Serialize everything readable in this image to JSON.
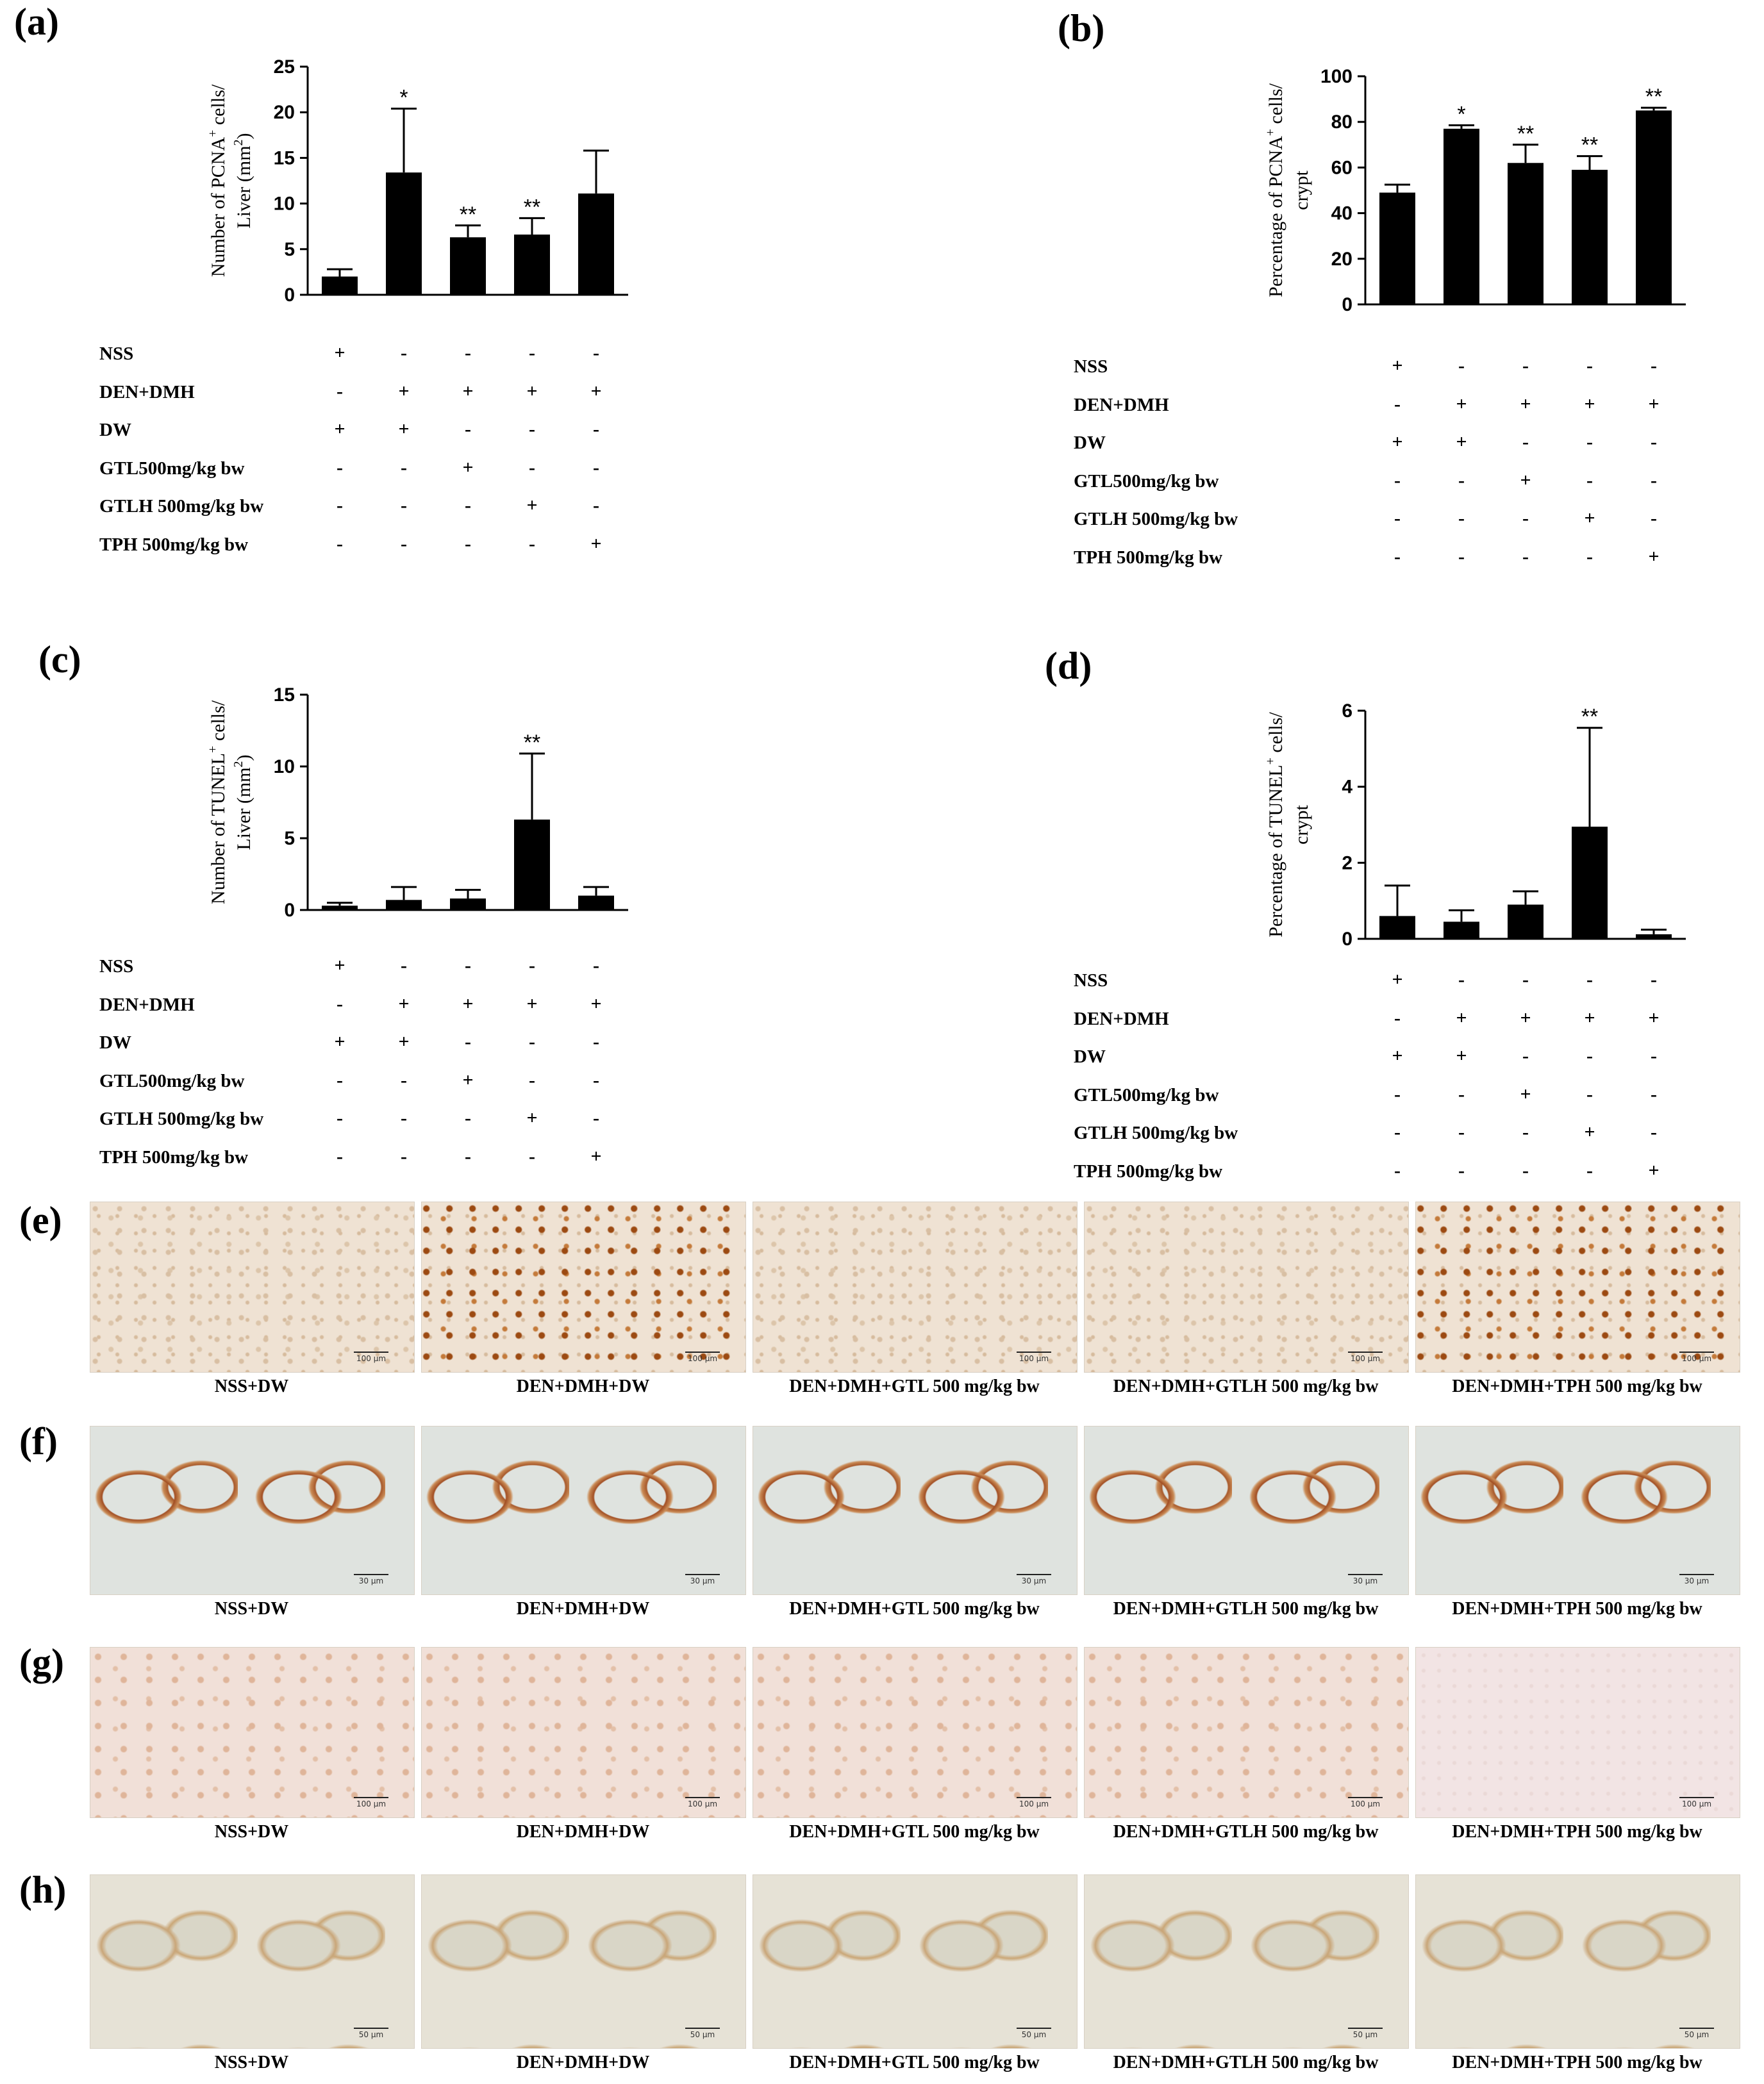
{
  "panel_labels": {
    "a": "(a)",
    "b": "(b)",
    "c": "(c)",
    "d": "(d)",
    "e": "(e)",
    "f": "(f)",
    "g": "(g)",
    "h": "(h)"
  },
  "treatment_rows": [
    "NSS",
    "DEN+DMH",
    "DW",
    "GTL500mg/kg bw",
    "GTLH 500mg/kg bw",
    "TPH 500mg/kg bw"
  ],
  "treatment_matrix": [
    [
      "+",
      "-",
      "-",
      "-",
      "-"
    ],
    [
      "-",
      "+",
      "+",
      "+",
      "+"
    ],
    [
      "+",
      "+",
      "-",
      "-",
      "-"
    ],
    [
      "-",
      "-",
      "+",
      "-",
      "-"
    ],
    [
      "-",
      "-",
      "-",
      "+",
      "-"
    ],
    [
      "-",
      "-",
      "-",
      "-",
      "+"
    ]
  ],
  "chart_data": [
    {
      "type": "bar",
      "panel": "(a)",
      "ylabel_line1": "Number of PCNA",
      "ylabel_sup": "+",
      "ylabel_line1_end": " cells/",
      "ylabel_line2": "Liver (mm",
      "ylabel_line2_sup": "2",
      "ylabel_line2_end": ")",
      "ylim": [
        0,
        25
      ],
      "yticks": [
        0,
        5,
        10,
        15,
        20,
        25
      ],
      "values": [
        2.0,
        13.4,
        6.3,
        6.6,
        11.1
      ],
      "errors": [
        0.8,
        7.0,
        1.3,
        1.8,
        4.7
      ],
      "significance": [
        "",
        "*",
        "**",
        "**",
        ""
      ]
    },
    {
      "type": "bar",
      "panel": "(b)",
      "ylabel_line1": "Percentage of PCNA",
      "ylabel_sup": "+",
      "ylabel_line1_end": " cells/",
      "ylabel_line2": "crypt",
      "ylabel_line2_sup": "",
      "ylabel_line2_end": "",
      "ylim": [
        0,
        100
      ],
      "yticks": [
        0,
        20,
        40,
        60,
        80,
        100
      ],
      "values": [
        49,
        77,
        62,
        59,
        85
      ],
      "errors": [
        3.5,
        1.5,
        8,
        6,
        1.2
      ],
      "significance": [
        "",
        "*",
        "**",
        "**",
        "**"
      ]
    },
    {
      "type": "bar",
      "panel": "(c)",
      "ylabel_line1": "Number of TUNEL",
      "ylabel_sup": "+",
      "ylabel_line1_end": " cells/",
      "ylabel_line2": "Liver (mm",
      "ylabel_line2_sup": "2",
      "ylabel_line2_end": ")",
      "ylim": [
        0,
        15
      ],
      "yticks": [
        0,
        5,
        10,
        15
      ],
      "values": [
        0.3,
        0.7,
        0.8,
        6.3,
        1.0
      ],
      "errors": [
        0.2,
        0.9,
        0.6,
        4.6,
        0.6
      ],
      "significance": [
        "",
        "",
        "",
        "**",
        ""
      ]
    },
    {
      "type": "bar",
      "panel": "(d)",
      "ylabel_line1": "Percentage of TUNEL",
      "ylabel_sup": "+",
      "ylabel_line1_end": " cells/",
      "ylabel_line2": "crypt",
      "ylabel_line2_sup": "",
      "ylabel_line2_end": "",
      "ylim": [
        0,
        6
      ],
      "yticks": [
        0,
        2,
        4,
        6
      ],
      "values": [
        0.6,
        0.45,
        0.9,
        2.95,
        0.12
      ],
      "errors": [
        0.8,
        0.3,
        0.35,
        2.6,
        0.12
      ],
      "significance": [
        "",
        "",
        "",
        "**",
        ""
      ]
    }
  ],
  "micrographs": {
    "e": {
      "labels": [
        "NSS+DW",
        "DEN+DMH+DW",
        "DEN+DMH+GTL 500 mg/kg bw",
        "DEN+DMH+GTLH 500 mg/kg bw",
        "DEN+DMH+TPH 500 mg/kg bw"
      ],
      "scale": "100 µm"
    },
    "f": {
      "labels": [
        "NSS+DW",
        "DEN+DMH+DW",
        "DEN+DMH+GTL 500 mg/kg bw",
        "DEN+DMH+GTLH 500 mg/kg bw",
        "DEN+DMH+TPH 500 mg/kg bw"
      ],
      "scale": "30 µm"
    },
    "g": {
      "labels": [
        "NSS+DW",
        "DEN+DMH+DW",
        "DEN+DMH+GTL 500 mg/kg bw",
        "DEN+DMH+GTLH 500 mg/kg bw",
        "DEN+DMH+TPH 500 mg/kg bw"
      ],
      "scale": "100 µm"
    },
    "h": {
      "labels": [
        "NSS+DW",
        "DEN+DMH+DW",
        "DEN+DMH+GTL 500 mg/kg bw",
        "DEN+DMH+GTLH 500 mg/kg bw",
        "DEN+DMH+TPH 500 mg/kg bw"
      ],
      "scale": "50 µm"
    }
  }
}
